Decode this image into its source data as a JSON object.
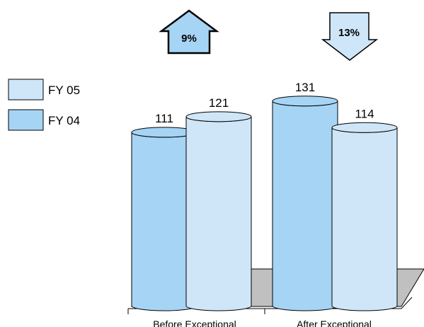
{
  "chart_data": {
    "type": "bar",
    "style": "3d-cylinder",
    "categories": [
      "Before Exceptional",
      "After Exceptional"
    ],
    "series": [
      {
        "name": "FY 04",
        "values": [
          111,
          131
        ],
        "color": "#a6d4f5"
      },
      {
        "name": "FY 05",
        "values": [
          121,
          114
        ],
        "color": "#cfe6f8"
      }
    ],
    "annotations": [
      {
        "label": "9%",
        "direction": "up",
        "category": "Before Exceptional"
      },
      {
        "label": "13%",
        "direction": "down",
        "category": "After Exceptional"
      }
    ],
    "legend": {
      "placement": "left",
      "order": [
        "FY 05",
        "FY 04"
      ]
    },
    "floor_color": "#c0c0c0",
    "arrow_up_color": "#a6d4f5",
    "arrow_down_color": "#cfe6f8",
    "grid": false,
    "title": "",
    "xlabel": "",
    "ylabel": ""
  }
}
